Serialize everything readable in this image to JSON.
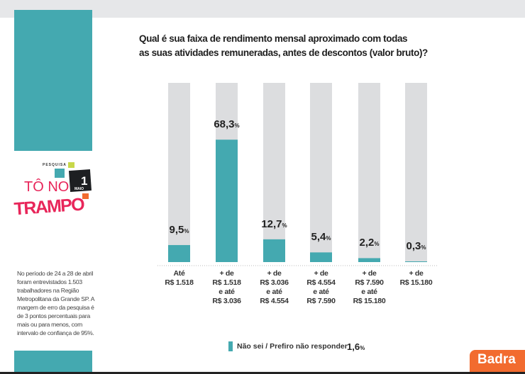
{
  "logo": {
    "small": "PESQUISA",
    "line1": "TÔ NO",
    "line2": "TRAMPO",
    "badge_num": "1",
    "badge_sub": "MAIO"
  },
  "note": "No período de 24 a 28 de abril foram entrevistados 1.503 trabalhadores na Região Metropolitana da Grande SP. A margem de erro da pesquisa é de 3 pontos percentuais para mais ou para menos, com intervalo de confiança de 95%.",
  "brand": "Badra",
  "colors": {
    "bar": "#44a9b0",
    "track": "#dcdddf",
    "accent": "#f26b2f"
  },
  "chart_data": {
    "type": "bar",
    "title": "Qual é sua faixa de rendimento mensal aproximado com todas as suas atividades remuneradas, antes de descontos (valor bruto)?",
    "title_lines": [
      "Qual é sua faixa de rendimento mensal aproximado com todas",
      "as suas atividades remuneradas, antes de descontos (valor bruto)?"
    ],
    "categories": [
      "Até\nR$ 1.518",
      "+ de\nR$ 1.518\ne até\nR$ 3.036",
      "+ de\nR$ 3.036\ne até\nR$ 4.554",
      "+ de\nR$ 4.554\ne até\nR$ 7.590",
      "+ de\nR$ 7.590\ne até\nR$ 15.180",
      "+ de\nR$ 15.180"
    ],
    "values": [
      9.5,
      68.3,
      12.7,
      5.4,
      2.2,
      0.3
    ],
    "labels": [
      "9,5",
      "68,3",
      "12,7",
      "5,4",
      "2,2",
      "0,3"
    ],
    "unit": "%",
    "ylim": [
      0,
      100
    ],
    "legend": {
      "label": "Não sei / Prefiro não responder",
      "value": "1,6",
      "unit": "%"
    }
  }
}
